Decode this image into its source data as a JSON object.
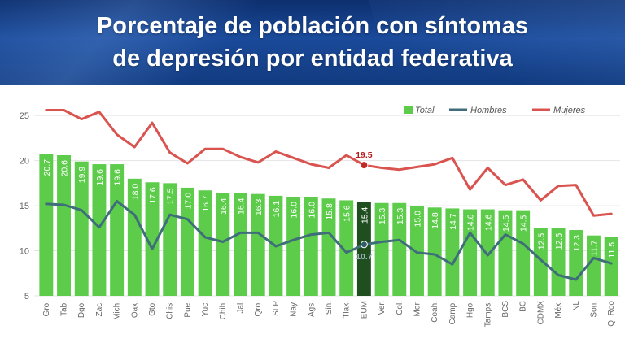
{
  "header": {
    "title_line1": "Porcentaje de población con síntomas",
    "title_line2": "de depresión por entidad federativa"
  },
  "colors": {
    "total": "#5ccc4a",
    "highlight": "#1f4e1f",
    "hombres": "#3f6e7a",
    "mujeres": "#d9534f",
    "grid": "#e4e4e4"
  },
  "chart_data": {
    "type": "bar",
    "title": "Porcentaje de población con síntomas de depresión por entidad federativa",
    "categories": [
      "Gro.",
      "Tab.",
      "Dgo.",
      "Zac.",
      "Mich.",
      "Oax.",
      "Gto.",
      "Chis.",
      "Pue.",
      "Yuc.",
      "Chih.",
      "Jal.",
      "Qro.",
      "SLP",
      "Nay.",
      "Ags.",
      "Sin.",
      "Tlax.",
      "EUM",
      "Ver.",
      "Col.",
      "Mor.",
      "Coah.",
      "Camp.",
      "Hgo.",
      "Tamps.",
      "BCS",
      "BC",
      "CDMX",
      "Méx.",
      "NL",
      "Son.",
      "Q. Roo"
    ],
    "highlight_category": "EUM",
    "series": [
      {
        "name": "Total",
        "type": "bar",
        "values": [
          20.7,
          20.6,
          19.9,
          19.6,
          19.6,
          18.0,
          17.6,
          17.5,
          17.0,
          16.7,
          16.4,
          16.4,
          16.3,
          16.1,
          16.0,
          16.0,
          15.8,
          15.6,
          15.4,
          15.3,
          15.3,
          15.0,
          14.8,
          14.7,
          14.6,
          14.6,
          14.5,
          14.5,
          12.5,
          12.5,
          12.3,
          11.7,
          11.5
        ]
      },
      {
        "name": "Hombres",
        "type": "line",
        "values": [
          15.2,
          15.1,
          14.5,
          12.6,
          15.5,
          14.0,
          10.2,
          14.0,
          13.5,
          11.5,
          11.0,
          12.0,
          12.0,
          10.5,
          11.2,
          11.8,
          12.0,
          9.8,
          10.7,
          11.0,
          11.2,
          9.8,
          9.6,
          8.5,
          12.0,
          9.5,
          11.8,
          10.8,
          9.0,
          7.3,
          6.8,
          9.2,
          8.6
        ]
      },
      {
        "name": "Mujeres",
        "type": "line",
        "values": [
          25.6,
          25.6,
          24.6,
          25.4,
          22.9,
          21.5,
          24.2,
          20.9,
          19.7,
          21.3,
          21.3,
          20.4,
          19.8,
          21.0,
          20.3,
          19.6,
          19.2,
          20.6,
          19.5,
          19.2,
          19.0,
          19.3,
          19.6,
          20.3,
          16.8,
          19.2,
          17.3,
          17.9,
          15.6,
          17.2,
          17.3,
          13.9,
          14.1
        ]
      }
    ],
    "annotations": [
      {
        "category": "EUM",
        "series": "Mujeres",
        "label": "19.5"
      },
      {
        "category": "EUM",
        "series": "Hombres",
        "label": "10.7"
      }
    ],
    "ylim": [
      5,
      27
    ],
    "yticks": [
      5,
      10,
      15,
      20,
      25
    ],
    "grid": true,
    "legend": {
      "position": "top-right",
      "items": [
        "Total",
        "Hombres",
        "Mujeres"
      ]
    },
    "xlabel": "",
    "ylabel": ""
  }
}
